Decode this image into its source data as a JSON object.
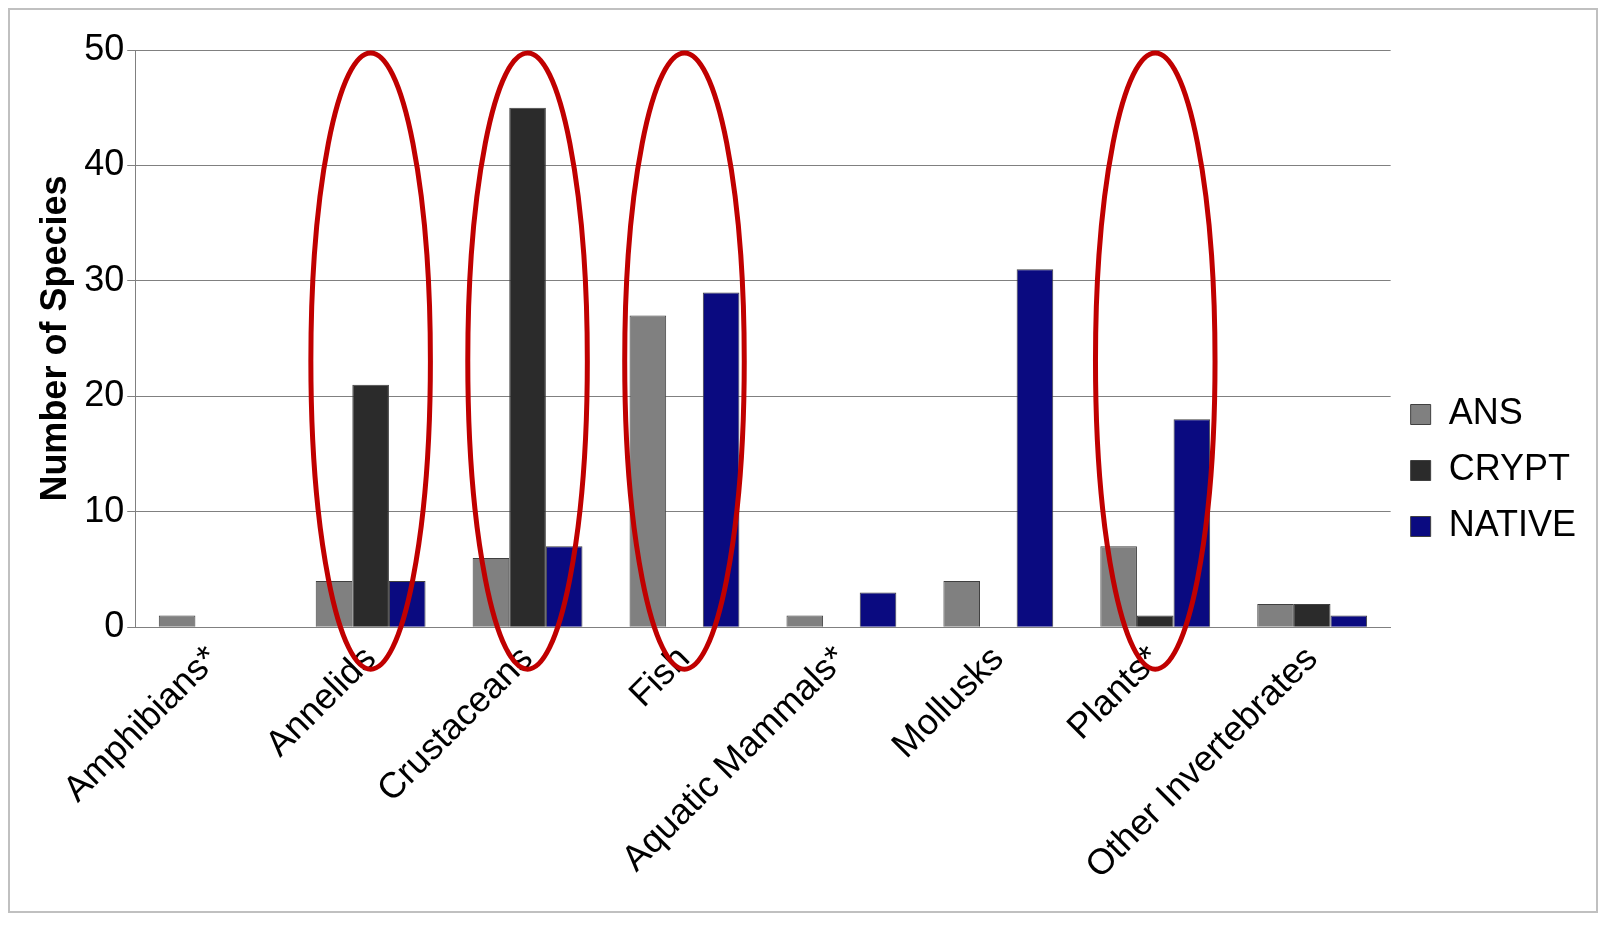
{
  "chart_data": {
    "type": "bar",
    "ylabel": "Number of Species",
    "categories": [
      "Amphibians*",
      "Annelids",
      "Crustaceans",
      "Fish",
      "Aquatic Mammals*",
      "Mollusks",
      "Plants*",
      "Other Invertebrates"
    ],
    "series": [
      {
        "name": "ANS",
        "color": "#808080",
        "values": [
          1,
          4,
          6,
          27,
          1,
          4,
          7,
          2
        ]
      },
      {
        "name": "CRYPT",
        "color": "#2b2b2b",
        "values": [
          0,
          21,
          45,
          0,
          0,
          0,
          1,
          2
        ]
      },
      {
        "name": "NATIVE",
        "color": "#0a0a80",
        "values": [
          0,
          4,
          7,
          29,
          3,
          31,
          18,
          1
        ]
      }
    ],
    "ylim": [
      0,
      50
    ],
    "yticks": [
      0,
      10,
      20,
      30,
      40,
      50
    ],
    "grid": "y",
    "legend": "right"
  }
}
